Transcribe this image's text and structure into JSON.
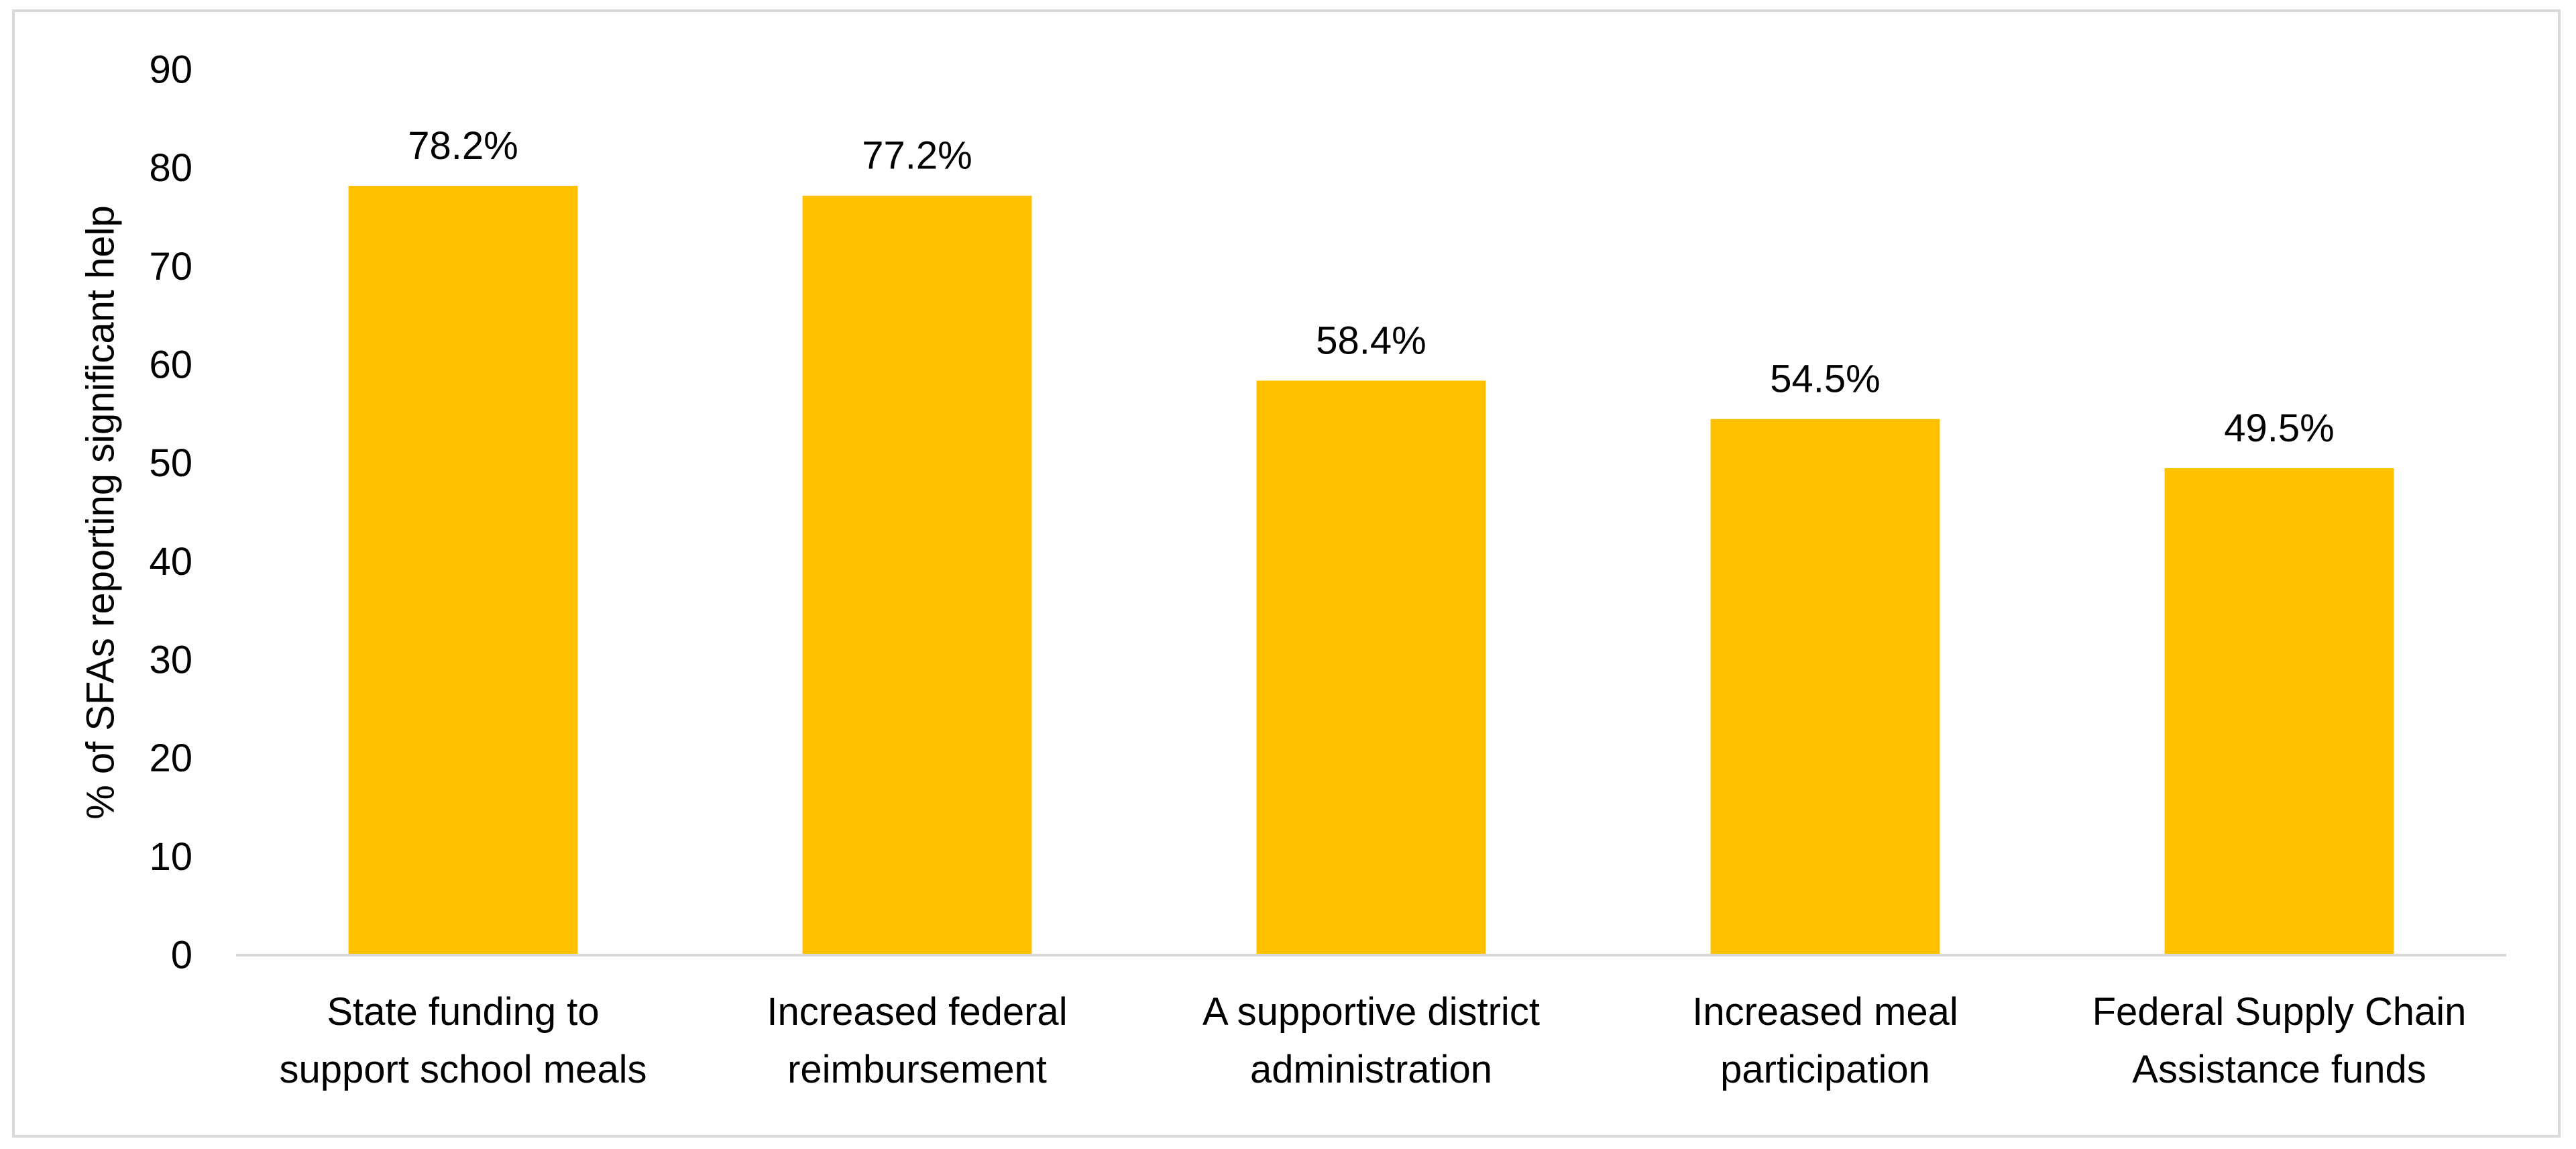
{
  "chart_data": {
    "type": "bar",
    "title": "",
    "xlabel": "",
    "ylabel": "% of SFAs reporting significant help",
    "ylim": [
      0,
      90
    ],
    "ytick_step": 10,
    "grid": false,
    "legend": "none",
    "bar_color": "#FFC000",
    "axis_color": "#d9d9d9",
    "categories": [
      [
        "State funding to",
        "support school meals"
      ],
      [
        "Increased federal",
        "reimbursement"
      ],
      [
        "A supportive district",
        "administration"
      ],
      [
        "Increased meal",
        "participation"
      ],
      [
        "Federal Supply Chain",
        "Assistance funds"
      ]
    ],
    "values": [
      78.2,
      77.2,
      58.4,
      54.5,
      49.5
    ],
    "data_labels": [
      "78.2%",
      "77.2%",
      "58.4%",
      "54.5%",
      "49.5%"
    ]
  }
}
